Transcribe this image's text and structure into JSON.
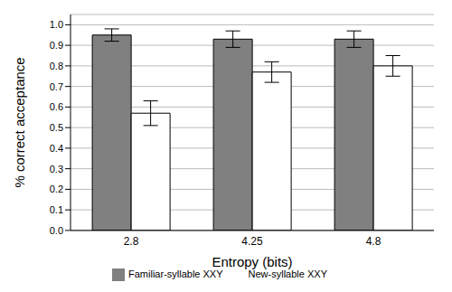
{
  "chart_data": {
    "type": "bar",
    "x_label": "Entropy (bits)",
    "y_label": "% correct acceptance",
    "categories": [
      "2.8",
      "4.25",
      "4.8"
    ],
    "series": [
      {
        "name": "Familiar-syllable XXY",
        "color": "#808080",
        "values": [
          0.95,
          0.93,
          0.93
        ],
        "errors": [
          0.03,
          0.04,
          0.04
        ]
      },
      {
        "name": "New-syllable XXY",
        "color": "#ffffff",
        "values": [
          0.57,
          0.77,
          0.8
        ],
        "errors": [
          0.06,
          0.05,
          0.05
        ]
      }
    ],
    "ylim": [
      0,
      1.05
    ],
    "yticks": [
      {
        "value": 0,
        "label": "0.0"
      },
      0.1,
      0.2,
      0.3,
      0.4,
      0.5,
      0.6,
      0.7,
      0.8,
      0.9,
      {
        "value": 1,
        "label": "1.0"
      }
    ],
    "grid": true,
    "legend": "bottom"
  }
}
